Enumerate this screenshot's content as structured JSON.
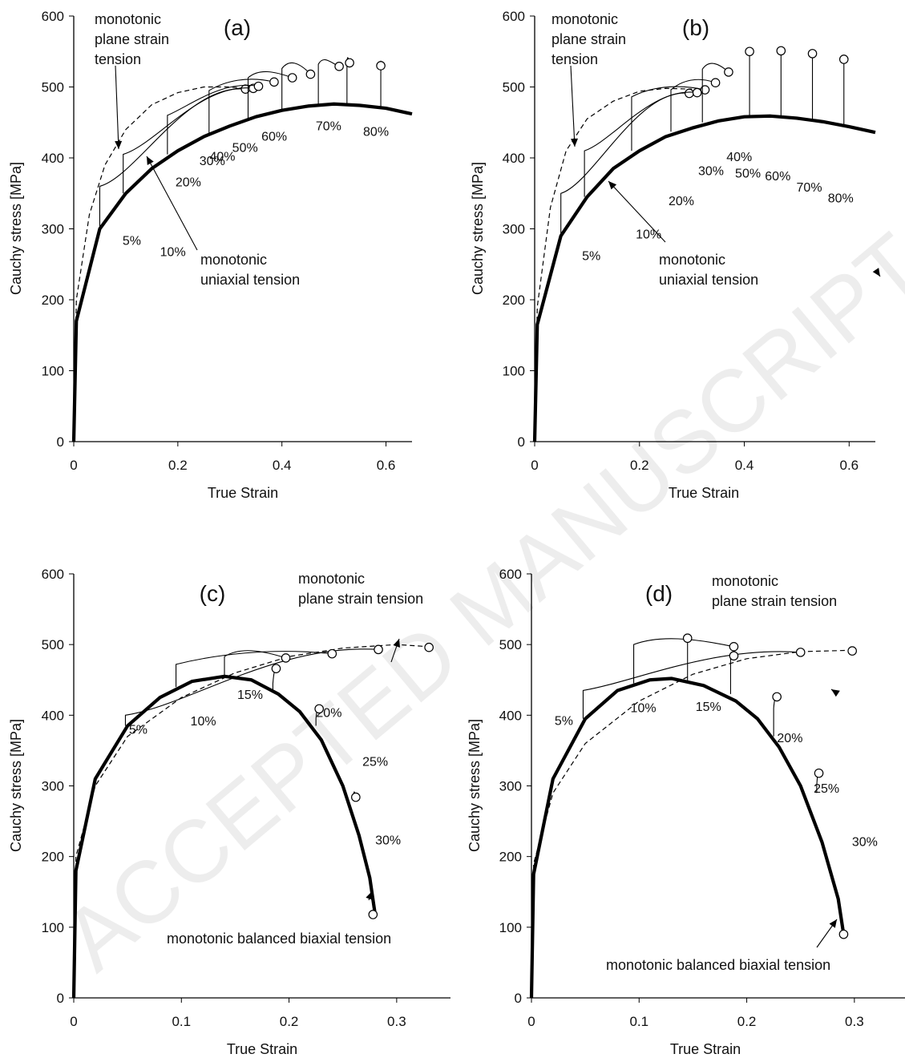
{
  "chart_data": [
    {
      "id": "a",
      "type": "line",
      "panel_label": "(a)",
      "xlabel": "True Strain",
      "ylabel": "Cauchy stress [MPa]",
      "xlim": [
        0,
        0.65
      ],
      "ylim": [
        0,
        600
      ],
      "xticks": [
        "0",
        "0.2",
        "0.4",
        "0.6"
      ],
      "yticks": [
        "0",
        "100",
        "200",
        "300",
        "400",
        "500",
        "600"
      ],
      "series": [
        {
          "style": "solid-thick",
          "x": [
            0,
            0.005,
            0.05,
            0.1,
            0.15,
            0.2,
            0.25,
            0.3,
            0.35,
            0.4,
            0.45,
            0.5,
            0.55,
            0.6,
            0.65
          ],
          "y": [
            0,
            170,
            300,
            350,
            385,
            410,
            430,
            445,
            458,
            467,
            473,
            476,
            474,
            470,
            462
          ]
        },
        {
          "style": "dashed",
          "x": [
            0,
            0.005,
            0.03,
            0.06,
            0.1,
            0.15,
            0.2,
            0.25,
            0.3,
            0.33
          ],
          "y": [
            0,
            200,
            320,
            390,
            440,
            475,
            492,
            500,
            500,
            498
          ]
        }
      ],
      "prestrains": [
        {
          "label": "5%",
          "x": 0.05,
          "y0": 300,
          "y_reload": 360,
          "end_x": 0.33,
          "end_y": 497
        },
        {
          "label": "10%",
          "x": 0.095,
          "y0": 350,
          "y_reload": 405,
          "end_x": 0.345,
          "end_y": 498
        },
        {
          "label": "20%",
          "x": 0.18,
          "y0": 405,
          "y_reload": 460,
          "end_x": 0.355,
          "end_y": 501
        },
        {
          "label": "30%",
          "x": 0.26,
          "y0": 435,
          "y_reload": 495,
          "end_x": 0.385,
          "end_y": 507
        },
        {
          "label": "40%",
          "x": 0.335,
          "y0": 455,
          "y_reload": 513,
          "end_x": 0.42,
          "end_y": 513
        },
        {
          "label": "50%",
          "x": 0.4,
          "y0": 467,
          "y_reload": 526,
          "end_x": 0.455,
          "end_y": 518
        },
        {
          "label": "60%",
          "x": 0.47,
          "y0": 474,
          "y_reload": 532,
          "end_x": 0.51,
          "end_y": 529
        },
        {
          "label": "70%",
          "x": 0.525,
          "y0": 475,
          "y_reload": 535,
          "end_x": 0.53,
          "end_y": 534
        },
        {
          "label": "80%",
          "x": 0.59,
          "y0": 472,
          "y_reload": 530,
          "end_x": 0.59,
          "end_y": 530
        }
      ],
      "annotations": {
        "plane": [
          "monotonic",
          "plane strain",
          "tension"
        ],
        "uniaxial": [
          "monotonic",
          "uniaxial tension"
        ]
      }
    },
    {
      "id": "b",
      "type": "line",
      "panel_label": "(b)",
      "xlabel": "True Strain",
      "ylabel": "Cauchy stress [MPa]",
      "xlim": [
        0,
        0.65
      ],
      "ylim": [
        0,
        600
      ],
      "xticks": [
        "0",
        "0.2",
        "0.4",
        "0.6"
      ],
      "yticks": [
        "0",
        "100",
        "200",
        "300",
        "400",
        "500",
        "600"
      ],
      "series": [
        {
          "style": "solid-thick",
          "x": [
            0,
            0.005,
            0.05,
            0.1,
            0.15,
            0.2,
            0.25,
            0.3,
            0.35,
            0.4,
            0.45,
            0.5,
            0.55,
            0.6,
            0.65
          ],
          "y": [
            0,
            165,
            290,
            345,
            385,
            410,
            430,
            442,
            452,
            458,
            459,
            456,
            451,
            444,
            436
          ]
        },
        {
          "style": "dashed",
          "x": [
            0,
            0.005,
            0.03,
            0.06,
            0.1,
            0.15,
            0.2,
            0.25,
            0.3
          ],
          "y": [
            0,
            190,
            330,
            410,
            455,
            480,
            494,
            498,
            497
          ]
        }
      ],
      "prestrains": [
        {
          "label": "5%",
          "x": 0.05,
          "y0": 290,
          "y_reload": 350,
          "end_x": 0.295,
          "end_y": 491
        },
        {
          "label": "10%",
          "x": 0.095,
          "y0": 345,
          "y_reload": 410,
          "end_x": 0.31,
          "end_y": 492
        },
        {
          "label": "20%",
          "x": 0.185,
          "y0": 410,
          "y_reload": 486,
          "end_x": 0.325,
          "end_y": 496
        },
        {
          "label": "30%",
          "x": 0.26,
          "y0": 437,
          "y_reload": 496,
          "end_x": 0.345,
          "end_y": 506
        },
        {
          "label": "40%",
          "x": 0.32,
          "y0": 450,
          "y_reload": 525,
          "end_x": 0.37,
          "end_y": 521
        },
        {
          "label": "50%",
          "x": 0.41,
          "y0": 458,
          "y_reload": 548,
          "end_x": 0.41,
          "end_y": 550
        },
        {
          "label": "60%",
          "x": 0.47,
          "y0": 459,
          "y_reload": 550,
          "end_x": 0.47,
          "end_y": 551
        },
        {
          "label": "70%",
          "x": 0.53,
          "y0": 454,
          "y_reload": 546,
          "end_x": 0.53,
          "end_y": 547
        },
        {
          "label": "80%",
          "x": 0.59,
          "y0": 446,
          "y_reload": 538,
          "end_x": 0.59,
          "end_y": 539
        }
      ],
      "annotations": {
        "plane": [
          "monotonic",
          "plane strain",
          "tension"
        ],
        "uniaxial": [
          "monotonic",
          "uniaxial tension"
        ]
      }
    },
    {
      "id": "c",
      "type": "line",
      "panel_label": "(c)",
      "xlabel": "True Strain",
      "ylabel": "Cauchy stress [MPa]",
      "xlim": [
        0,
        0.35
      ],
      "ylim": [
        0,
        600
      ],
      "xticks": [
        "0",
        "0.1",
        "0.2",
        "0.3"
      ],
      "yticks": [
        "0",
        "100",
        "200",
        "300",
        "400",
        "500",
        "600"
      ],
      "series": [
        {
          "style": "solid-thick",
          "x": [
            0,
            0.002,
            0.02,
            0.05,
            0.08,
            0.11,
            0.14,
            0.165,
            0.19,
            0.21,
            0.23,
            0.25,
            0.265,
            0.275,
            0.28
          ],
          "y": [
            0,
            180,
            310,
            385,
            425,
            448,
            455,
            450,
            430,
            405,
            365,
            300,
            230,
            170,
            118
          ]
        },
        {
          "style": "dashed",
          "x": [
            0,
            0.002,
            0.02,
            0.05,
            0.1,
            0.15,
            0.2,
            0.25,
            0.3,
            0.33
          ],
          "y": [
            0,
            200,
            300,
            370,
            425,
            460,
            483,
            495,
            500,
            497
          ]
        }
      ],
      "prestrains": [
        {
          "label": "5%",
          "x": 0.048,
          "y0": 385,
          "y_reload": 400,
          "end_x": 0.283,
          "end_y": 493
        },
        {
          "label": "10%",
          "x": 0.095,
          "y0": 440,
          "y_reload": 472,
          "end_x": 0.24,
          "end_y": 487
        },
        {
          "label": "15%",
          "x": 0.14,
          "y0": 455,
          "y_reload": 483,
          "end_x": 0.197,
          "end_y": 481
        },
        {
          "label": "20%",
          "x": 0.185,
          "y0": 435,
          "y_reload": 445,
          "end_x": 0.188,
          "end_y": 466
        },
        {
          "label": "25%",
          "x": 0.225,
          "y0": 385,
          "y_reload": 395,
          "end_x": 0.228,
          "end_y": 409
        },
        {
          "label": "30%",
          "x": 0.26,
          "y0": 285,
          "y_reload": 285,
          "end_x": 0.262,
          "end_y": 284
        }
      ],
      "plane_end": {
        "x": 0.33,
        "y": 496
      },
      "biaxial_end": {
        "x": 0.278,
        "y": 118
      },
      "annotations": {
        "plane": [
          "monotonic",
          "plane strain tension"
        ],
        "biaxial": [
          "monotonic balanced biaxial tension"
        ]
      }
    },
    {
      "id": "d",
      "type": "line",
      "panel_label": "(d)",
      "xlabel": "True Strain",
      "ylabel": "Cauchy stress [MPa]",
      "xlim": [
        0,
        0.35
      ],
      "ylim": [
        0,
        600
      ],
      "xticks": [
        "0",
        "0.1",
        "0.2",
        "0.3"
      ],
      "yticks": [
        "0",
        "100",
        "200",
        "300",
        "400",
        "500",
        "600"
      ],
      "series": [
        {
          "style": "solid-thick",
          "x": [
            0,
            0.002,
            0.02,
            0.05,
            0.08,
            0.11,
            0.13,
            0.16,
            0.19,
            0.21,
            0.23,
            0.25,
            0.27,
            0.285,
            0.29
          ],
          "y": [
            0,
            175,
            310,
            395,
            435,
            450,
            452,
            442,
            420,
            395,
            355,
            300,
            220,
            140,
            90
          ]
        },
        {
          "style": "dashed",
          "x": [
            0,
            0.002,
            0.02,
            0.05,
            0.1,
            0.15,
            0.2,
            0.25,
            0.3
          ],
          "y": [
            0,
            190,
            290,
            360,
            420,
            458,
            480,
            490,
            492
          ]
        }
      ],
      "prestrains": [
        {
          "label": "5%",
          "x": 0.048,
          "y0": 395,
          "y_reload": 435,
          "end_x": 0.25,
          "end_y": 489
        },
        {
          "label": "10%",
          "x": 0.095,
          "y0": 445,
          "y_reload": 500,
          "end_x": 0.188,
          "end_y": 497
        },
        {
          "label": "15%",
          "x": 0.145,
          "y0": 449,
          "y_reload": 508,
          "end_x": 0.145,
          "end_y": 509
        },
        {
          "label": "20%",
          "x": 0.185,
          "y0": 430,
          "y_reload": 482,
          "end_x": 0.188,
          "end_y": 484
        },
        {
          "label": "25%",
          "x": 0.225,
          "y0": 370,
          "y_reload": 410,
          "end_x": 0.228,
          "end_y": 426
        },
        {
          "label": "30%",
          "x": 0.265,
          "y0": 290,
          "y_reload": 300,
          "end_x": 0.267,
          "end_y": 318
        }
      ],
      "plane_end": {
        "x": 0.298,
        "y": 491
      },
      "biaxial_end": {
        "x": 0.29,
        "y": 90
      },
      "annotations": {
        "plane": [
          "monotonic",
          "plane strain tension"
        ],
        "biaxial": [
          "monotonic balanced biaxial tension"
        ]
      }
    }
  ]
}
